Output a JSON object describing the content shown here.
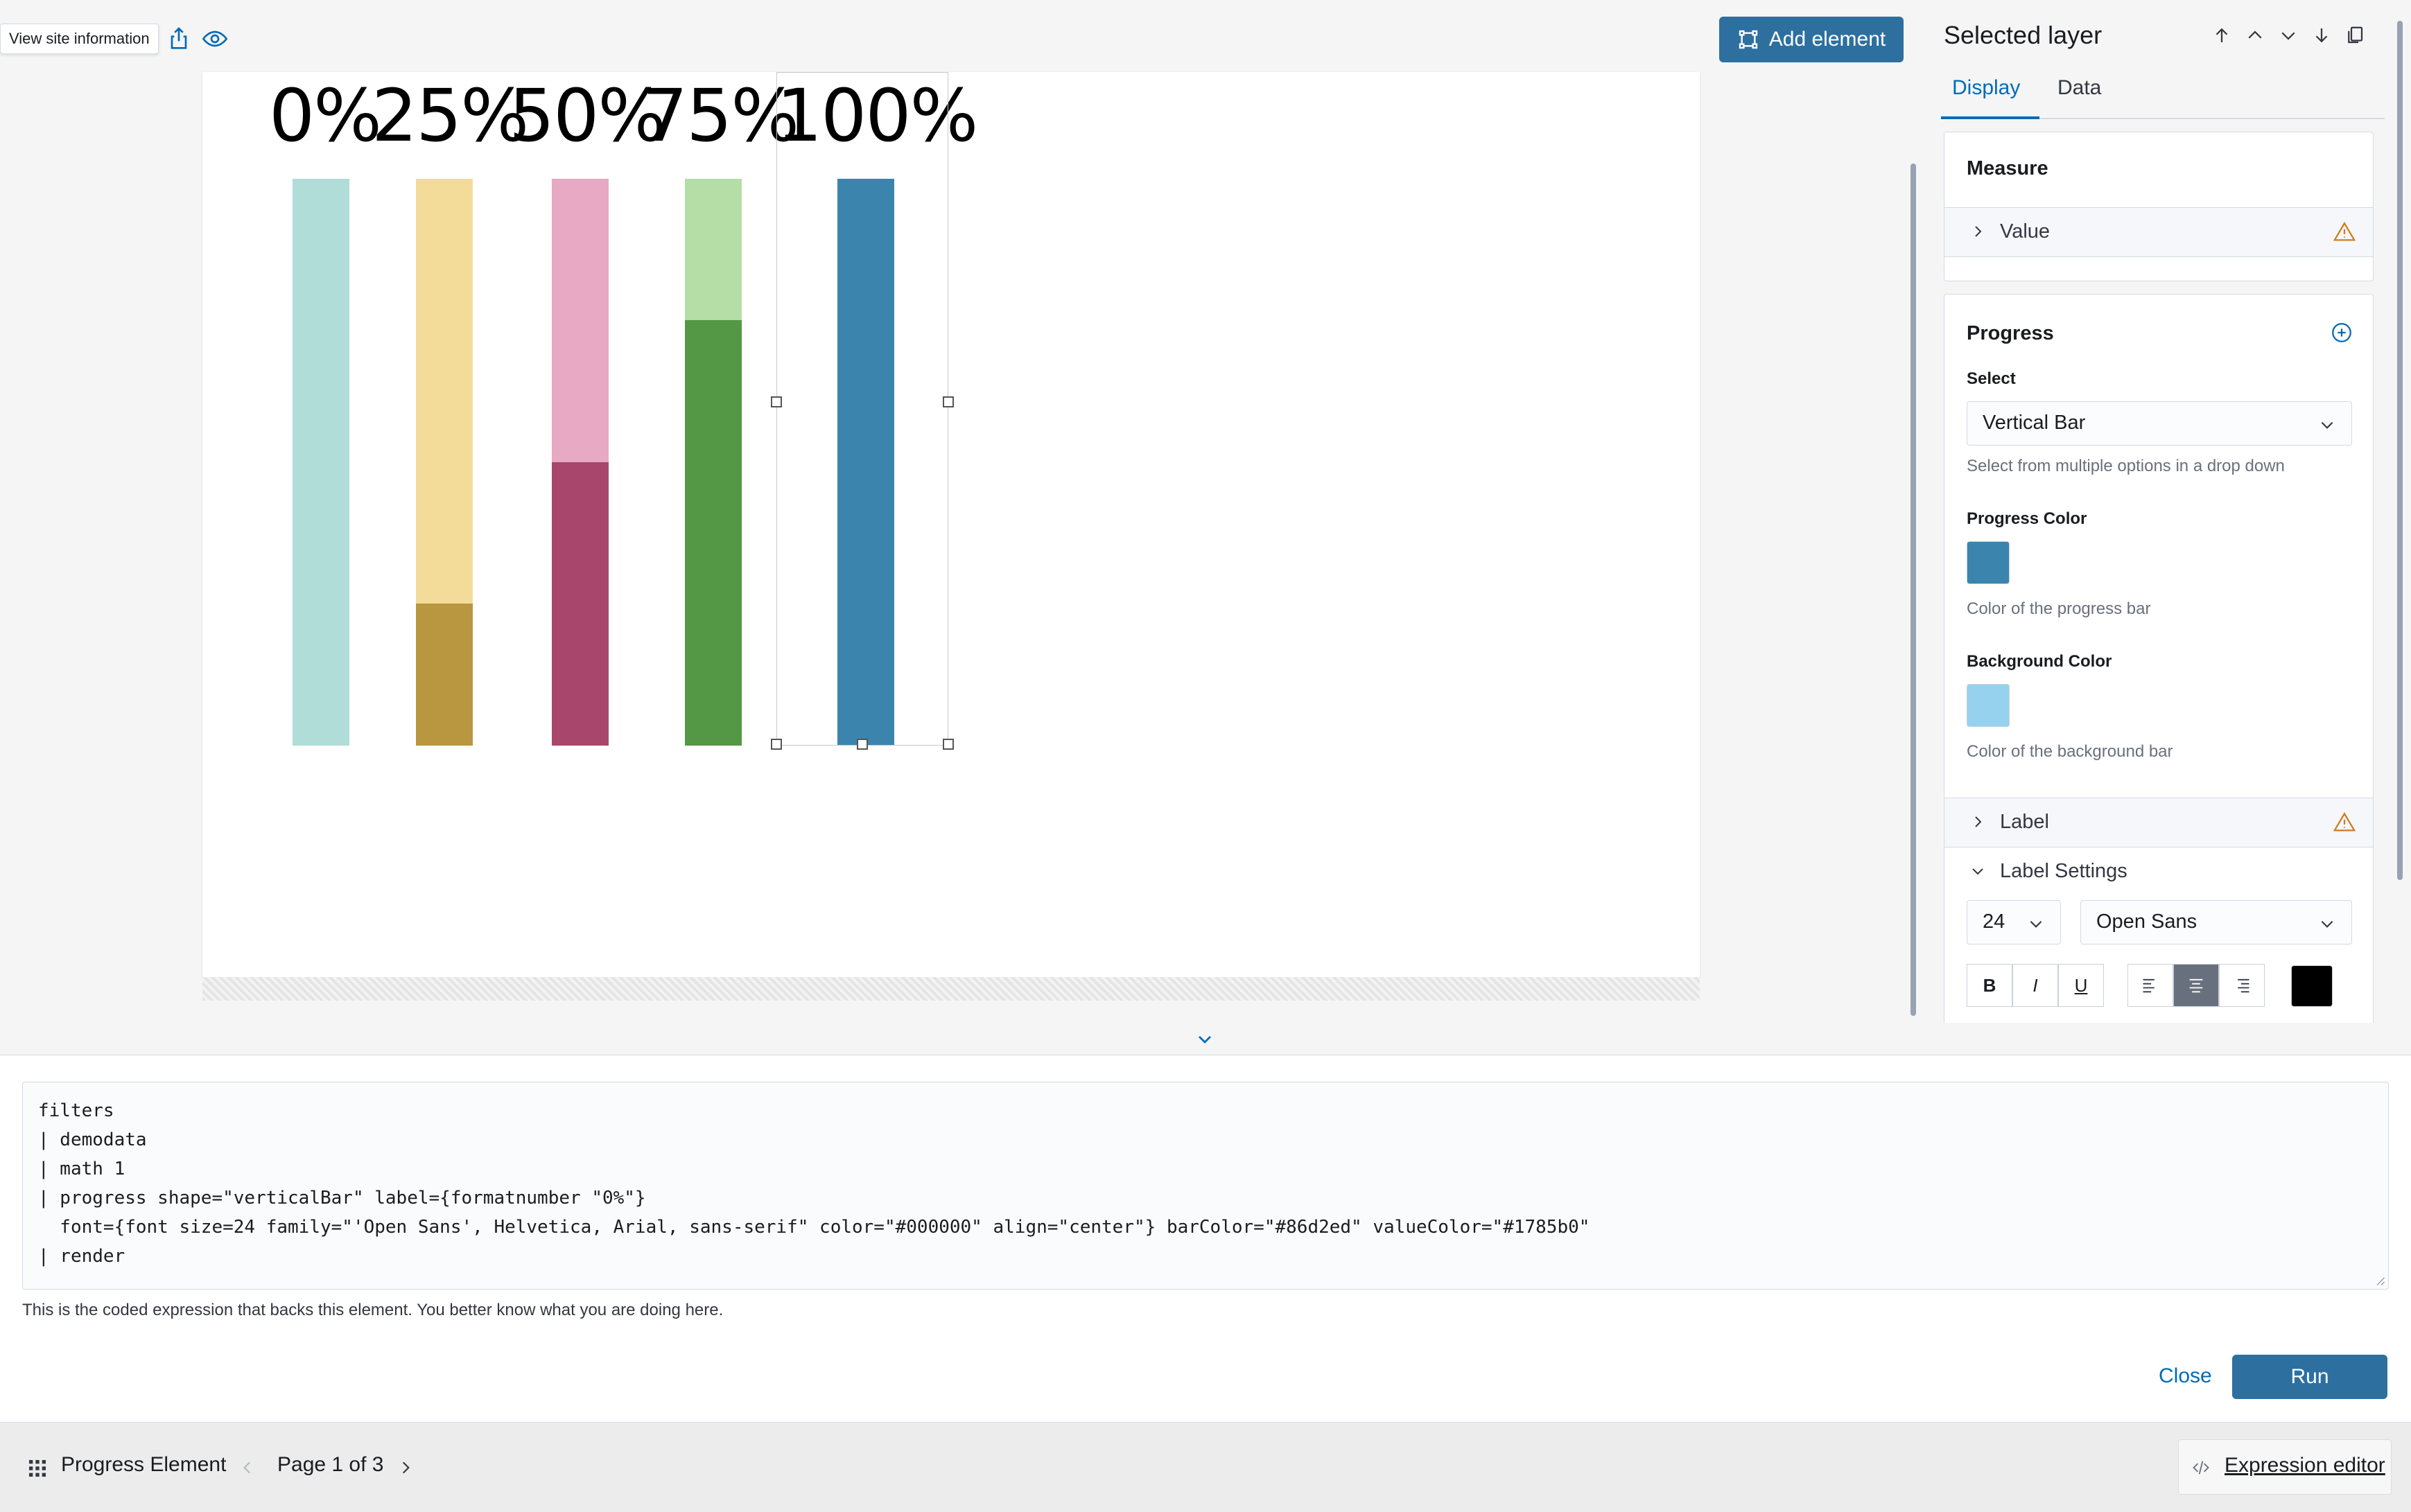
{
  "toolbar": {
    "tooltip": "View site information",
    "add_element_label": "Add element"
  },
  "canvas": {
    "progress_labels": [
      "0%",
      "25%",
      "50%",
      "75%",
      "100%"
    ],
    "bars": [
      {
        "progress": 0,
        "bg": "#b0ddd7",
        "fg": "#b0ddd7"
      },
      {
        "progress": 25,
        "bg": "#f3dc9a",
        "fg": "#b99640"
      },
      {
        "progress": 50,
        "bg": "#e7a9c4",
        "fg": "#a9466c"
      },
      {
        "progress": 75,
        "bg": "#b4dea5",
        "fg": "#549745"
      },
      {
        "progress": 100,
        "bg": "#86d2ed",
        "fg": "#3b84ad"
      }
    ]
  },
  "panel": {
    "title": "Selected layer",
    "tabs": [
      "Display",
      "Data"
    ],
    "measure": {
      "heading": "Measure",
      "value_label": "Value"
    },
    "progress": {
      "heading": "Progress",
      "select_label": "Select",
      "select_value": "Vertical Bar",
      "select_help": "Select from multiple options in a drop down",
      "progress_color_label": "Progress Color",
      "progress_color": "#3b84ad",
      "progress_color_help": "Color of the progress bar",
      "background_color_label": "Background Color",
      "background_color": "#96d2ed",
      "background_color_help": "Color of the background bar",
      "label_row": "Label",
      "label_settings": "Label Settings",
      "font_size": "24",
      "font_family": "Open Sans",
      "text_color": "#000000"
    }
  },
  "expression": {
    "lines": [
      "filters",
      "| demodata",
      "| math 1",
      "| progress shape=\"verticalBar\" label={formatnumber \"0%\"}",
      "  font={font size=24 family=\"'Open Sans', Helvetica, Arial, sans-serif\" color=\"#000000\" align=\"center\"} barColor=\"#86d2ed\" valueColor=\"#1785b0\"",
      "| render"
    ],
    "help": "This is the coded expression that backs this element. You better know what you are doing here.",
    "close_label": "Close",
    "run_label": "Run"
  },
  "footer": {
    "element_name": "Progress Element",
    "page_label": "Page 1 of 3",
    "expression_editor_label": "Expression editor"
  }
}
